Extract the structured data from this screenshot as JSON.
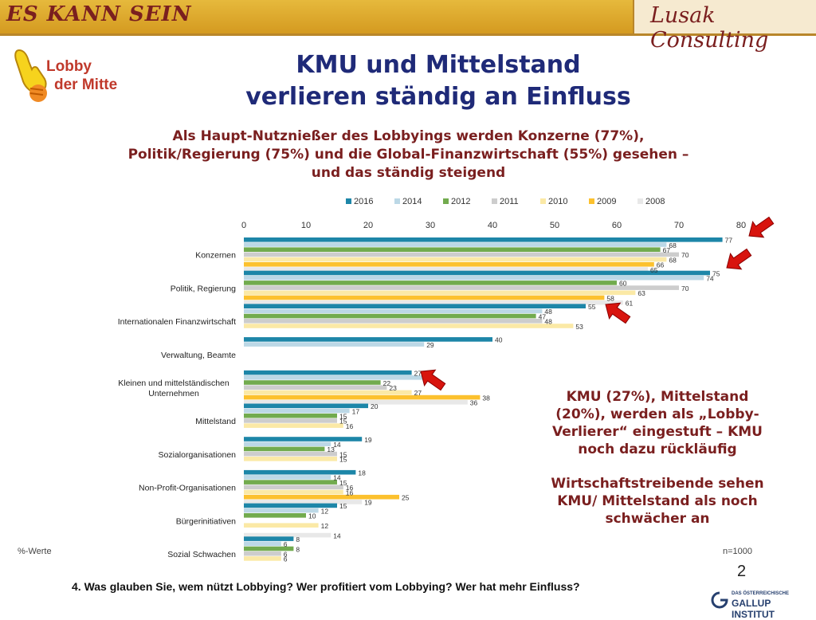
{
  "header": {
    "left_brand": "ES KANN SEIN",
    "right_brand": "Lusak Consulting"
  },
  "logo": {
    "line1": "Lobby",
    "line2": "der Mitte"
  },
  "title": {
    "line1": "KMU und Mittelstand",
    "line2": "verlieren ständig an Einfluss"
  },
  "subtitle": {
    "line1": "Als Haupt-Nutznießer des Lobbyings werden Konzerne (77%),",
    "line2": "Politik/Regierung (75%) und die Global-Finanzwirtschaft (55%) gesehen –",
    "line3": "und das ständig steigend"
  },
  "note": {
    "line1": "KMU (27%), Mittelstand",
    "line2": "(20%), werden als „Lobby-",
    "line3": "Verlierer“ eingestuft – KMU",
    "line4": "noch dazu rückläufig"
  },
  "note2": {
    "line1": "Wirtschaftstreibende sehen",
    "line2": "KMU/ Mittelstand als noch",
    "line3": "schwächer an"
  },
  "unit_label": "%-Werte",
  "n_label": "n=1000",
  "page_number": "2",
  "question": "4. Was glauben Sie, wem nützt Lobbying? Wer profitiert vom Lobbying? Wer hat mehr Einfluss?",
  "gallup": {
    "small": "DAS ÖSTERREICHISCHE",
    "big": "GALLUP INSTITUT"
  },
  "chart_data": {
    "type": "bar",
    "orientation": "horizontal",
    "categories": [
      "Konzernen",
      "Politik, Regierung",
      "Internationalen Finanzwirtschaft",
      "Verwaltung, Beamte",
      "Kleinen und mittelständischen Unternehmen",
      "Mittelstand",
      "Sozialorganisationen",
      "Non-Profit-Organisationen",
      "Bürgerinitiativen",
      "Sozial Schwachen"
    ],
    "series": [
      {
        "name": "2016",
        "color": "#1d86a8",
        "values": [
          77,
          75,
          55,
          40,
          27,
          20,
          19,
          18,
          15,
          8
        ]
      },
      {
        "name": "2014",
        "color": "#bcd8e6",
        "values": [
          68,
          74,
          48,
          29,
          29,
          17,
          14,
          14,
          12,
          6
        ]
      },
      {
        "name": "2012",
        "color": "#72ab4e",
        "values": [
          67,
          60,
          47,
          null,
          22,
          15,
          13,
          15,
          10,
          8
        ]
      },
      {
        "name": "2011",
        "color": "#cdcdcd",
        "values": [
          70,
          70,
          48,
          null,
          23,
          15,
          15,
          16,
          null,
          6
        ]
      },
      {
        "name": "2010",
        "color": "#fbe9a6",
        "values": [
          68,
          63,
          53,
          null,
          27,
          16,
          15,
          16,
          12,
          6
        ]
      },
      {
        "name": "2009",
        "color": "#fcc12e",
        "values": [
          66,
          58,
          null,
          null,
          38,
          null,
          null,
          25,
          null,
          null
        ]
      },
      {
        "name": "2008",
        "color": "#e8e8e8",
        "values": [
          65,
          61,
          null,
          null,
          36,
          null,
          null,
          19,
          14,
          null
        ]
      }
    ],
    "xlim": [
      0,
      80
    ],
    "xticks": [
      0,
      10,
      20,
      30,
      40,
      50,
      60,
      70,
      80
    ],
    "legend_position": "top",
    "grid": false
  }
}
